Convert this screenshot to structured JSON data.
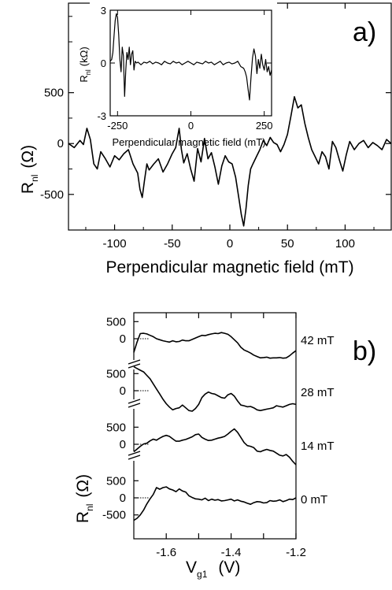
{
  "panel_a_label": "a)",
  "panel_b_label": "b)",
  "chart_data": [
    {
      "id": "a-main",
      "type": "line",
      "xlabel": "Perpendicular magnetic field (mT)",
      "ylabel_main": "R",
      "ylabel_sub": "nl",
      "ylabel_unit": "(Ω)",
      "xlim": [
        -140,
        140
      ],
      "ylim": [
        -850,
        1380
      ],
      "xticks": [
        -100,
        -50,
        0,
        50,
        100
      ],
      "xtick_labels": [
        "-100",
        "-50",
        "0",
        "50",
        "100"
      ],
      "yticks": [
        -500,
        0,
        500
      ],
      "ytick_labels": [
        "-500",
        "0",
        "500"
      ],
      "series": [
        {
          "x": [
            -140,
            -135,
            -130,
            -127,
            -124,
            -121,
            -118,
            -115,
            -112,
            -108,
            -104,
            -100,
            -96,
            -92,
            -88,
            -84,
            -80,
            -78,
            -76,
            -74,
            -72,
            -70,
            -66,
            -62,
            -58,
            -54,
            -50,
            -47,
            -44,
            -42,
            -40,
            -37,
            -34,
            -31,
            -28,
            -25,
            -22,
            -19,
            -16,
            -13,
            -10,
            -7,
            -4,
            -1,
            2,
            5,
            8,
            10,
            12,
            14,
            16,
            18,
            20,
            23,
            26,
            29,
            32,
            35,
            38,
            41,
            44,
            47,
            50,
            53,
            56,
            59,
            62,
            65,
            68,
            71,
            74,
            77,
            80,
            83,
            86,
            89,
            92,
            95,
            98,
            101,
            104,
            108,
            112,
            116,
            120,
            124,
            128,
            132,
            136,
            140
          ],
          "y": [
            0,
            -40,
            30,
            -10,
            150,
            40,
            -200,
            -250,
            -80,
            -150,
            -230,
            -120,
            -160,
            -100,
            -60,
            -200,
            -290,
            -450,
            -530,
            -360,
            -200,
            -260,
            -200,
            -150,
            -280,
            -200,
            -100,
            -40,
            150,
            -60,
            -190,
            -100,
            -250,
            -370,
            -50,
            -180,
            50,
            -150,
            -90,
            -230,
            -400,
            -220,
            -120,
            -180,
            -200,
            -330,
            -550,
            -700,
            -810,
            -640,
            -410,
            -250,
            -200,
            -130,
            -60,
            30,
            -20,
            60,
            10,
            -10,
            -80,
            -10,
            90,
            270,
            460,
            350,
            380,
            200,
            60,
            -60,
            -130,
            -200,
            -80,
            -130,
            -250,
            20,
            -40,
            -160,
            -270,
            -110,
            20,
            -60,
            0,
            30,
            -40,
            10,
            -20,
            -60,
            40,
            0
          ]
        }
      ]
    },
    {
      "id": "a-inset",
      "type": "line",
      "xlabel": "Perpendicular magnetic field (mT)",
      "ylabel_main": "R",
      "ylabel_sub": "nl",
      "ylabel_unit": "(kΩ)",
      "xlim": [
        -275,
        275
      ],
      "ylim": [
        -3,
        3
      ],
      "xticks": [
        -250,
        0,
        250
      ],
      "xtick_labels": [
        "-250",
        "0",
        "250"
      ],
      "yticks": [
        -3,
        0,
        3
      ],
      "ytick_labels": [
        "-3",
        "0",
        "3"
      ],
      "series": [
        {
          "x": [
            -275,
            -270,
            -266,
            -262,
            -258,
            -254,
            -250,
            -246,
            -242,
            -238,
            -234,
            -230,
            -226,
            -222,
            -218,
            -214,
            -210,
            -206,
            -202,
            -198,
            -194,
            -190,
            -185,
            -180,
            -170,
            -160,
            -150,
            -140,
            -130,
            -120,
            -110,
            -100,
            -90,
            -80,
            -70,
            -60,
            -50,
            -40,
            -30,
            -20,
            -10,
            0,
            10,
            20,
            30,
            40,
            50,
            60,
            70,
            80,
            90,
            100,
            110,
            120,
            130,
            140,
            150,
            160,
            170,
            180,
            185,
            190,
            195,
            200,
            205,
            210,
            215,
            220,
            225,
            230,
            235,
            240,
            245,
            250,
            255,
            260,
            265,
            270,
            275
          ],
          "y": [
            0.1,
            0.2,
            0.6,
            1.5,
            2.4,
            2.8,
            2.6,
            1.6,
            0.2,
            -0.5,
            0.9,
            0.4,
            -1.9,
            -0.4,
            0.6,
            0.2,
            0.9,
            -0.1,
            0.5,
            0.7,
            -0.4,
            0.1,
            0.0,
            0.05,
            -0.1,
            0.05,
            0.0,
            0.1,
            -0.05,
            0.05,
            0.0,
            -0.1,
            0.1,
            0.0,
            -0.05,
            0.1,
            0.0,
            0.05,
            -0.1,
            0.0,
            0.1,
            0.0,
            -0.1,
            0.05,
            0.0,
            -0.05,
            0.1,
            0.0,
            0.05,
            -0.1,
            0.0,
            0.1,
            -0.1,
            0.0,
            0.05,
            -0.05,
            0.0,
            0.1,
            -0.2,
            -0.3,
            -0.5,
            -0.8,
            -1.5,
            -2.1,
            -0.8,
            0.3,
            0.8,
            0.4,
            -0.6,
            0.2,
            -0.3,
            0.5,
            -0.1,
            -0.4,
            0.2,
            -0.5,
            -0.2,
            -0.7,
            -0.4
          ]
        }
      ]
    },
    {
      "id": "b",
      "type": "line",
      "xlabel_main": "V",
      "xlabel_sub": "g1",
      "xlabel_unit": "(V)",
      "ylabel_main": "R",
      "ylabel_sub": "nl",
      "ylabel_unit": "(Ω)",
      "xlim": [
        -1.7,
        -1.2
      ],
      "xticks": [
        -1.6,
        -1.5,
        -1.4,
        -1.3,
        -1.2
      ],
      "xtick_labels": [
        "-1.6",
        "-1.4",
        "-1.2"
      ],
      "ytick_labels": [
        "500",
        "0",
        "500",
        "0",
        "500",
        "0",
        "500",
        "0",
        "-500"
      ],
      "series": [
        {
          "name": "42 mT",
          "x": [
            -1.7,
            -1.69,
            -1.68,
            -1.67,
            -1.66,
            -1.65,
            -1.64,
            -1.63,
            -1.62,
            -1.61,
            -1.6,
            -1.59,
            -1.58,
            -1.57,
            -1.56,
            -1.55,
            -1.54,
            -1.53,
            -1.52,
            -1.51,
            -1.5,
            -1.49,
            -1.48,
            -1.47,
            -1.46,
            -1.45,
            -1.44,
            -1.43,
            -1.42,
            -1.41,
            -1.4,
            -1.39,
            -1.38,
            -1.37,
            -1.36,
            -1.35,
            -1.34,
            -1.33,
            -1.32,
            -1.31,
            -1.3,
            -1.29,
            -1.28,
            -1.27,
            -1.26,
            -1.25,
            -1.24,
            -1.23,
            -1.22,
            -1.21,
            -1.2
          ],
          "y": [
            -400,
            -100,
            150,
            160,
            140,
            100,
            60,
            0,
            -30,
            -60,
            -80,
            -100,
            -60,
            -90,
            -80,
            -40,
            -60,
            -60,
            -20,
            20,
            60,
            100,
            90,
            120,
            140,
            160,
            150,
            180,
            160,
            130,
            60,
            -30,
            -120,
            -250,
            -330,
            -370,
            -420,
            -480,
            -520,
            -560,
            -550,
            -540,
            -570,
            -560,
            -560,
            -550,
            -570,
            -560,
            -500,
            -420,
            -350
          ]
        },
        {
          "name": "28 mT",
          "x": [
            -1.7,
            -1.69,
            -1.68,
            -1.67,
            -1.66,
            -1.65,
            -1.64,
            -1.63,
            -1.62,
            -1.61,
            -1.6,
            -1.59,
            -1.58,
            -1.57,
            -1.56,
            -1.55,
            -1.54,
            -1.53,
            -1.52,
            -1.51,
            -1.5,
            -1.49,
            -1.48,
            -1.47,
            -1.46,
            -1.45,
            -1.44,
            -1.43,
            -1.42,
            -1.41,
            -1.4,
            -1.39,
            -1.38,
            -1.37,
            -1.36,
            -1.35,
            -1.34,
            -1.33,
            -1.32,
            -1.31,
            -1.3,
            -1.29,
            -1.28,
            -1.27,
            -1.26,
            -1.25,
            -1.24,
            -1.23,
            -1.22,
            -1.21,
            -1.2
          ],
          "y": [
            700,
            650,
            600,
            550,
            450,
            350,
            200,
            50,
            -100,
            -250,
            -380,
            -480,
            -560,
            -520,
            -500,
            -420,
            -500,
            -580,
            -600,
            -520,
            -400,
            -200,
            -100,
            -40,
            -80,
            -100,
            -150,
            -200,
            -220,
            -120,
            -80,
            -160,
            -300,
            -420,
            -440,
            -470,
            -460,
            -500,
            -560,
            -580,
            -560,
            -540,
            -520,
            -500,
            -440,
            -460,
            -480,
            -440,
            -400,
            -380,
            -400
          ]
        },
        {
          "name": "14 mT",
          "x": [
            -1.7,
            -1.69,
            -1.68,
            -1.67,
            -1.66,
            -1.65,
            -1.64,
            -1.63,
            -1.62,
            -1.61,
            -1.6,
            -1.59,
            -1.58,
            -1.57,
            -1.56,
            -1.55,
            -1.54,
            -1.53,
            -1.52,
            -1.51,
            -1.5,
            -1.49,
            -1.48,
            -1.47,
            -1.46,
            -1.45,
            -1.44,
            -1.43,
            -1.42,
            -1.41,
            -1.4,
            -1.39,
            -1.38,
            -1.37,
            -1.36,
            -1.35,
            -1.34,
            -1.33,
            -1.32,
            -1.31,
            -1.3,
            -1.29,
            -1.28,
            -1.27,
            -1.26,
            -1.25,
            -1.24,
            -1.23,
            -1.22,
            -1.21,
            -1.2
          ],
          "y": [
            -220,
            -140,
            -60,
            10,
            30,
            100,
            150,
            120,
            180,
            230,
            260,
            230,
            160,
            90,
            90,
            120,
            140,
            180,
            220,
            280,
            300,
            200,
            150,
            110,
            120,
            150,
            180,
            200,
            230,
            300,
            380,
            450,
            350,
            200,
            50,
            -40,
            -60,
            -100,
            -200,
            -220,
            -180,
            -150,
            -180,
            -200,
            -260,
            -320,
            -340,
            -300,
            -380,
            -500,
            -600
          ]
        },
        {
          "name": "0 mT",
          "x": [
            -1.7,
            -1.69,
            -1.68,
            -1.67,
            -1.66,
            -1.65,
            -1.64,
            -1.63,
            -1.62,
            -1.61,
            -1.6,
            -1.59,
            -1.58,
            -1.57,
            -1.56,
            -1.55,
            -1.54,
            -1.53,
            -1.52,
            -1.51,
            -1.5,
            -1.49,
            -1.48,
            -1.47,
            -1.46,
            -1.45,
            -1.44,
            -1.43,
            -1.42,
            -1.41,
            -1.4,
            -1.39,
            -1.38,
            -1.37,
            -1.36,
            -1.35,
            -1.34,
            -1.33,
            -1.32,
            -1.31,
            -1.3,
            -1.29,
            -1.28,
            -1.27,
            -1.26,
            -1.25,
            -1.24,
            -1.23,
            -1.22,
            -1.21,
            -1.2
          ],
          "y": [
            -660,
            -600,
            -500,
            -360,
            -180,
            -30,
            100,
            300,
            250,
            300,
            320,
            260,
            230,
            180,
            260,
            200,
            170,
            60,
            10,
            -30,
            -40,
            -60,
            -10,
            -80,
            -40,
            -70,
            -50,
            -90,
            -80,
            -60,
            -40,
            -90,
            -60,
            -100,
            -120,
            -160,
            -190,
            -140,
            -110,
            -120,
            -150,
            -140,
            -80,
            -100,
            -90,
            -60,
            -110,
            -80,
            -40,
            -50,
            0
          ]
        }
      ]
    }
  ]
}
